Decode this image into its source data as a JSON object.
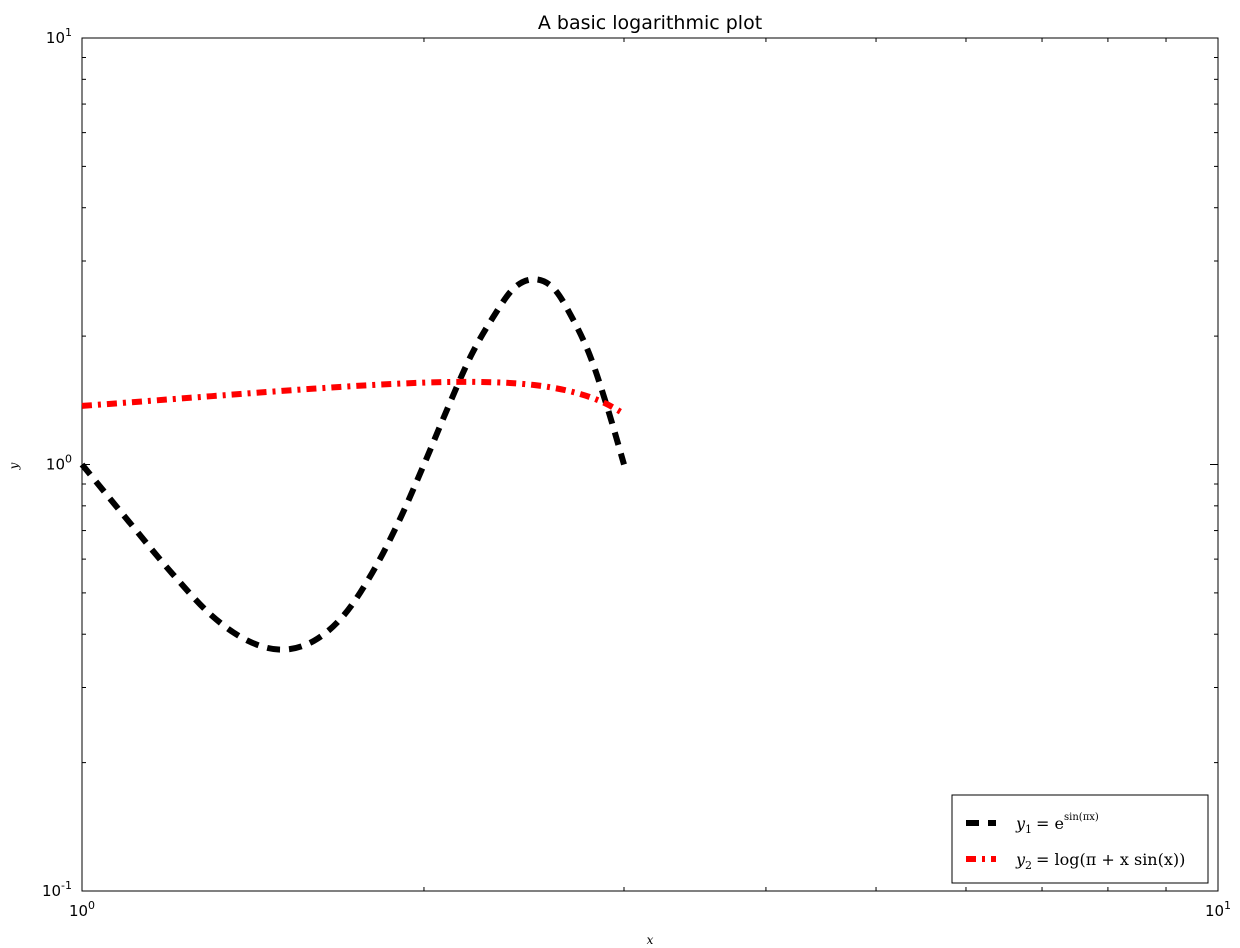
{
  "chart_data": {
    "type": "line",
    "title": "A basic logarithmic plot",
    "xlabel": "x",
    "ylabel": "y",
    "xscale": "log",
    "yscale": "log",
    "xlim": [
      1,
      10
    ],
    "ylim": [
      0.1,
      10
    ],
    "grid": false,
    "legend_position": "lower-right",
    "x_ticks": [
      {
        "value": 1,
        "base": "10",
        "exp": "0"
      },
      {
        "value": 10,
        "base": "10",
        "exp": "1"
      }
    ],
    "y_ticks": [
      {
        "value": 0.1,
        "base": "10",
        "exp": "-1"
      },
      {
        "value": 1,
        "base": "10",
        "exp": "0"
      },
      {
        "value": 10,
        "base": "10",
        "exp": "1"
      }
    ],
    "series": [
      {
        "name": "y1 = e^(sin(πx))",
        "color": "#000000",
        "style": "dashed",
        "x": [
          1.0,
          1.1,
          1.2,
          1.3,
          1.4,
          1.5,
          1.6,
          1.7,
          1.8,
          1.9,
          2.0,
          2.1,
          2.2,
          2.3,
          2.4,
          2.5,
          2.6,
          2.7,
          2.8,
          2.9,
          3.0
        ],
        "y": [
          1.0,
          0.734,
          0.556,
          0.443,
          0.386,
          0.368,
          0.386,
          0.443,
          0.556,
          0.734,
          1.0,
          1.362,
          1.799,
          2.211,
          2.591,
          2.718,
          2.591,
          2.211,
          1.799,
          1.362,
          1.0
        ]
      },
      {
        "name": "y2 = log(π + x sin(x))",
        "color": "#ff0000",
        "style": "dashdot",
        "x": [
          1.0,
          1.1,
          1.2,
          1.3,
          1.4,
          1.5,
          1.6,
          1.7,
          1.8,
          1.9,
          2.0,
          2.1,
          2.2,
          2.3,
          2.4,
          2.5,
          2.6,
          2.7,
          2.8,
          2.9,
          3.0
        ],
        "y": [
          1.372,
          1.398,
          1.423,
          1.446,
          1.468,
          1.488,
          1.506,
          1.522,
          1.536,
          1.547,
          1.556,
          1.561,
          1.562,
          1.559,
          1.551,
          1.536,
          1.513,
          1.481,
          1.439,
          1.384,
          1.315
        ]
      }
    ],
    "legend": [
      {
        "color": "#000000",
        "style": "dashed",
        "sym": "y",
        "sub": "1",
        "rhs": "= e",
        "sup": "sin(πx)"
      },
      {
        "color": "#ff0000",
        "style": "dashdot",
        "sym": "y",
        "sub": "2",
        "rhs": "= log(π + x sin(x))",
        "sup": ""
      }
    ]
  }
}
